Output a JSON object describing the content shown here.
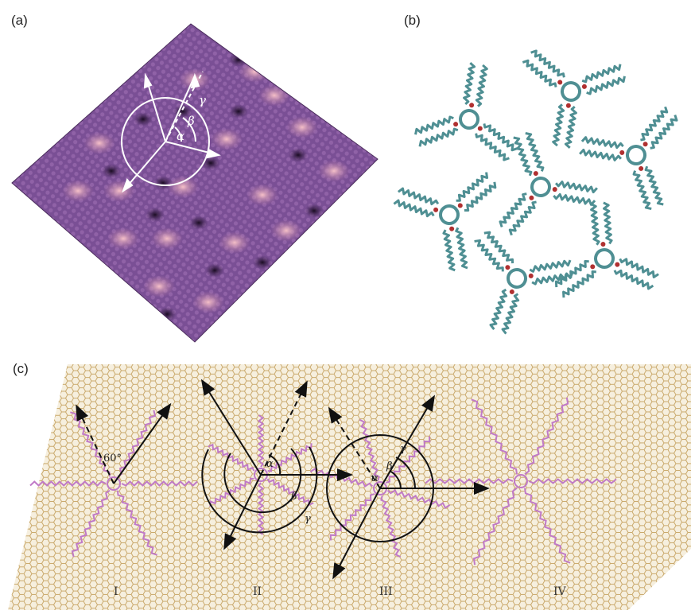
{
  "panels": {
    "a": {
      "label": "(a)",
      "angles": {
        "alpha": "α",
        "beta": "β",
        "gamma": "γ"
      }
    },
    "b": {
      "label": "(b)"
    },
    "c": {
      "label": "(c)",
      "structures": [
        {
          "roman": "I",
          "angle_text": "60°"
        },
        {
          "roman": "II",
          "alpha": "α",
          "beta": "β",
          "gamma": "γ"
        },
        {
          "roman": "III",
          "alpha": "α",
          "beta": "β",
          "gamma": "γ"
        },
        {
          "roman": "IV"
        }
      ]
    }
  },
  "colors": {
    "stm_dark": "#3a1f4d",
    "stm_mid": "#7b4f97",
    "stm_light": "#e9a7b8",
    "molecule_teal": "#4f8f93",
    "molecule_red": "#b03030",
    "lattice": "#c9a86a",
    "lattice_bg": "#f4ecd9",
    "model_pink": "#c07ac7"
  }
}
